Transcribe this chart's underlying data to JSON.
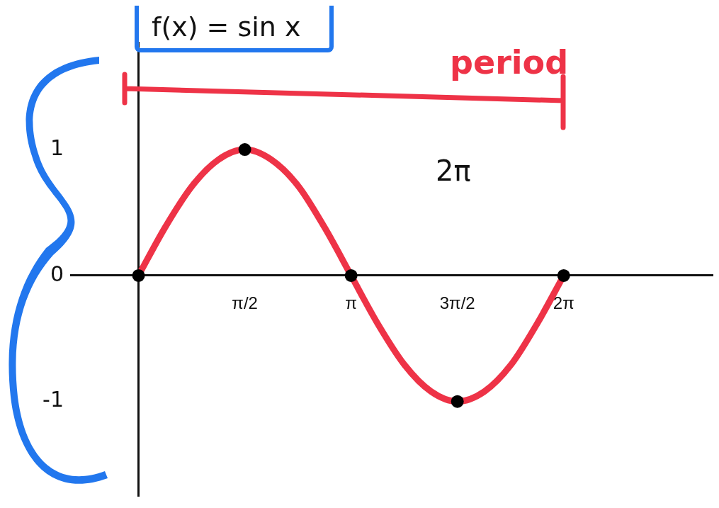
{
  "chart_data": {
    "type": "line",
    "title": "f(x) = sin x",
    "annotations": [
      "period",
      "2π"
    ],
    "xlim": [
      -1,
      8.48
    ],
    "ylim": [
      -1.75,
      1.85
    ],
    "xticks": [
      {
        "value": 1.57,
        "label": "π/2"
      },
      {
        "value": 3.14,
        "label": "π"
      },
      {
        "value": 4.71,
        "label": "3π/2"
      },
      {
        "value": 6.28,
        "label": "2π"
      }
    ],
    "yticks": [
      {
        "value": -1,
        "label": "-1"
      },
      {
        "value": 0,
        "label": "0"
      },
      {
        "value": 1,
        "label": "1"
      }
    ],
    "grid": false,
    "legend": false,
    "series": [
      {
        "color": "#ee3347",
        "marker": "none",
        "x": [
          0,
          0.39,
          0.79,
          1.18,
          1.57,
          1.96,
          2.36,
          2.75,
          3.14,
          3.53,
          3.93,
          4.32,
          4.71,
          5.11,
          5.5,
          5.89,
          6.28
        ],
        "values": [
          0,
          0.38,
          0.71,
          0.92,
          1,
          0.92,
          0.71,
          0.38,
          0,
          -0.38,
          -0.71,
          -0.92,
          -1,
          -0.92,
          -0.71,
          -0.38,
          0
        ]
      },
      {
        "type": "scatter",
        "color": "#000000",
        "marker": "circle",
        "x": [
          0,
          1.57,
          3.14,
          4.71,
          6.28
        ],
        "values": [
          0,
          1,
          0,
          -1,
          0
        ]
      }
    ]
  }
}
